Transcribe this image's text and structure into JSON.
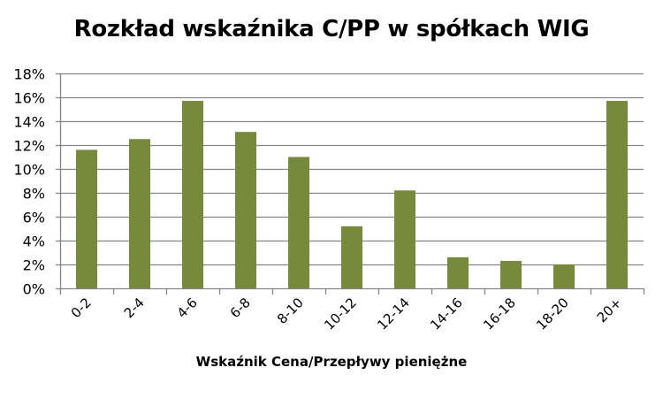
{
  "chart_data": {
    "type": "bar",
    "title": "Rozkład wskaźnika C/PP w spółkach WIG",
    "xlabel": "Wskaźnik Cena/Przepływy pieniężne",
    "ylabel": "",
    "categories": [
      "0-2",
      "2-4",
      "4-6",
      "6-8",
      "8-10",
      "10-12",
      "12-14",
      "14-16",
      "16-18",
      "18-20",
      "20+"
    ],
    "values": [
      11.6,
      12.5,
      15.7,
      13.1,
      11.0,
      5.2,
      8.2,
      2.6,
      2.3,
      2.0,
      15.7
    ],
    "value_unit": "%",
    "ylim": [
      0,
      18
    ],
    "yticks": [
      0,
      2,
      4,
      6,
      8,
      10,
      12,
      14,
      16,
      18
    ],
    "ytick_labels": [
      "0%",
      "2%",
      "4%",
      "6%",
      "8%",
      "10%",
      "12%",
      "14%",
      "16%",
      "18%"
    ],
    "grid": true,
    "legend": null,
    "bar_color": "#77893b",
    "grid_color": "#868686",
    "xtick_rotation": -45
  }
}
